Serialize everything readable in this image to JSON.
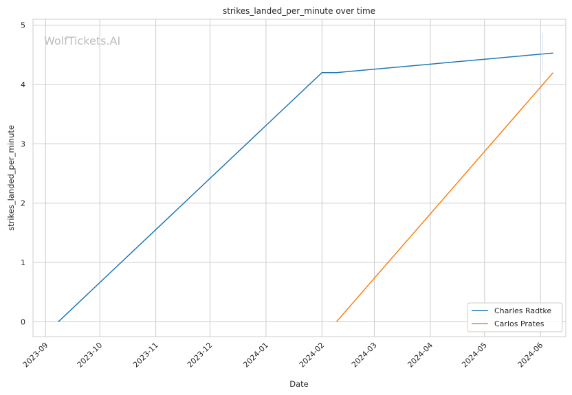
{
  "chart_data": {
    "type": "line",
    "title": "strikes_landed_per_minute over time",
    "xlabel": "Date",
    "ylabel": "strikes_landed_per_minute",
    "watermark": "WolfTickets.AI",
    "xlim": [
      "2023-08-25",
      "2024-06-15"
    ],
    "ylim": [
      -0.25,
      5.1
    ],
    "x_ticks": [
      "2023-09-01",
      "2023-10-01",
      "2023-11-01",
      "2023-12-01",
      "2024-01-01",
      "2024-02-01",
      "2024-03-01",
      "2024-04-01",
      "2024-05-01",
      "2024-06-01"
    ],
    "x_tick_labels": [
      "2023-09",
      "2023-10",
      "2023-11",
      "2023-12",
      "2024-01",
      "2024-02",
      "2024-03",
      "2024-04",
      "2024-05",
      "2024-06"
    ],
    "y_ticks": [
      0,
      1,
      2,
      3,
      4,
      5
    ],
    "y_tick_labels": [
      "0",
      "1",
      "2",
      "3",
      "4",
      "5"
    ],
    "grid": true,
    "legend_position": "bottom-right",
    "series": [
      {
        "name": "Charles Radtke",
        "color": "#1f77b4",
        "x": [
          "2023-09-08",
          "2024-02-01",
          "2024-02-09",
          "2024-06-08"
        ],
        "y": [
          0,
          4.2,
          4.2,
          4.53
        ]
      },
      {
        "name": "Carlos Prates",
        "color": "#ff7f0e",
        "x": [
          "2024-02-09",
          "2024-06-08"
        ],
        "y": [
          0,
          4.2
        ]
      }
    ]
  }
}
